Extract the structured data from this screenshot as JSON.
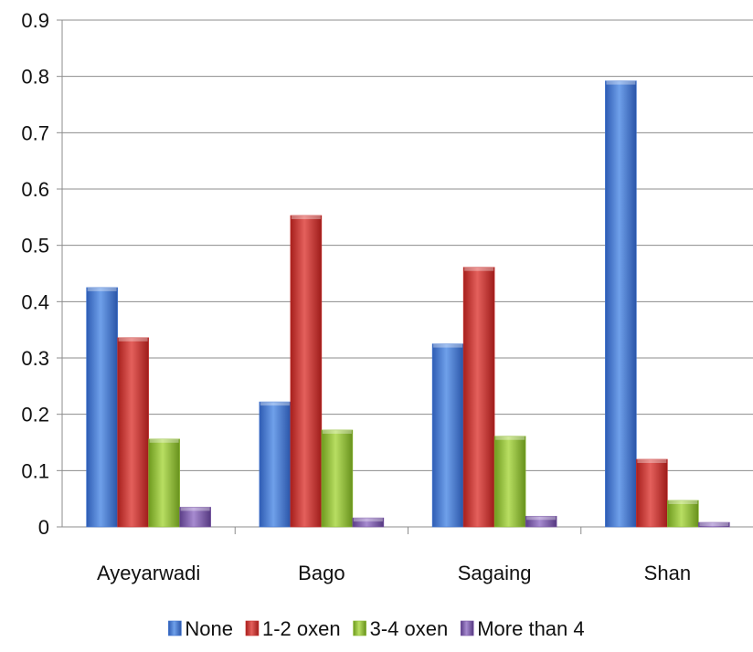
{
  "chart_data": {
    "type": "bar",
    "categories": [
      "Ayeyarwadi",
      "Bago",
      "Sagaing",
      "Shan"
    ],
    "series": [
      {
        "name": "None",
        "values": [
          0.425,
          0.222,
          0.325,
          0.792
        ],
        "color": "#3F74D0"
      },
      {
        "name": "1-2 oxen",
        "values": [
          0.336,
          0.553,
          0.461,
          0.12
        ],
        "color": "#C8312E"
      },
      {
        "name": "3-4 oxen",
        "values": [
          0.156,
          0.172,
          0.161,
          0.047
        ],
        "color": "#8DBA34"
      },
      {
        "name": "More than 4",
        "values": [
          0.035,
          0.016,
          0.019,
          0.008
        ],
        "color": "#7A56A6"
      }
    ],
    "yticks": [
      "0",
      "0.1",
      "0.2",
      "0.3",
      "0.4",
      "0.5",
      "0.6",
      "0.7",
      "0.8",
      "0.9"
    ],
    "ylim": [
      0,
      0.9
    ],
    "grid": true,
    "legend_position": "bottom"
  }
}
